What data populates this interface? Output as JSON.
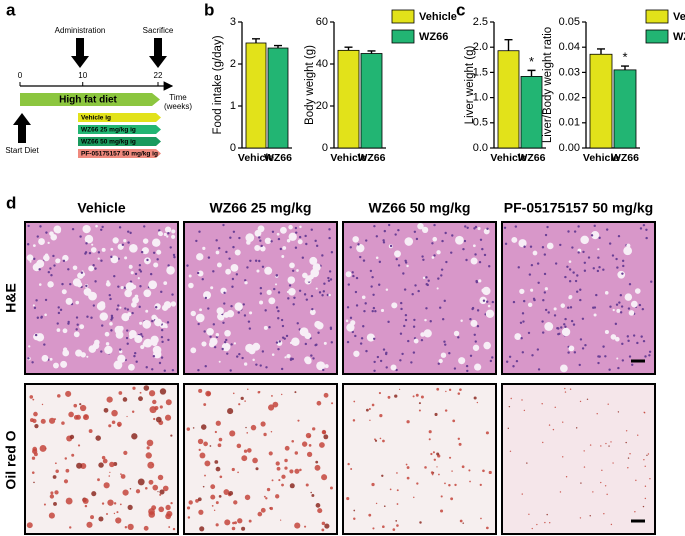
{
  "timeline": {
    "panel_label": "a",
    "events": [
      "Administration",
      "Sacrifice"
    ],
    "ticks": [
      0,
      10,
      22
    ],
    "time_label": [
      "Time",
      "(weeks)"
    ],
    "diet": "High fat diet",
    "start": "Start Diet",
    "groups": [
      {
        "name": "Vehicle ig",
        "color": "#e2e21a"
      },
      {
        "name": "WZ66 25 mg/kg ig",
        "color": "#22b573"
      },
      {
        "name": "WZ66 50 mg/kg ig",
        "color": "#1a9a5e"
      },
      {
        "name": "PF-05175157 50 mg/kg ig",
        "color": "#f08a7e"
      }
    ]
  },
  "chart_data": [
    {
      "type": "bar",
      "panel_label": "b",
      "y_label": "Food intake (g/day)",
      "categories": [
        "Vehicle",
        "WZ66"
      ],
      "values": [
        2.5,
        2.38
      ],
      "errors": [
        0.1,
        0.06
      ],
      "colors": [
        "#e2e21a",
        "#22b573"
      ],
      "ylim": [
        0,
        3
      ],
      "yticks": [
        0,
        1,
        2,
        3
      ]
    },
    {
      "type": "bar",
      "y_label": "Body weight (g)",
      "categories": [
        "Vehicle",
        "WZ66"
      ],
      "values": [
        46.5,
        45
      ],
      "errors": [
        1.5,
        1.2
      ],
      "colors": [
        "#e2e21a",
        "#22b573"
      ],
      "ylim": [
        0,
        60
      ],
      "yticks": [
        0,
        20,
        40,
        60
      ],
      "legend": true
    },
    {
      "type": "bar",
      "panel_label": "c",
      "y_label": "Liver weight (g)",
      "categories": [
        "Vehicle",
        "WZ66"
      ],
      "values": [
        1.93,
        1.42
      ],
      "errors": [
        0.22,
        0.12
      ],
      "colors": [
        "#e2e21a",
        "#22b573"
      ],
      "significance": [
        null,
        "*"
      ],
      "ylim": [
        0,
        2.5
      ],
      "yticks": [
        {
          "value": 0,
          "label": "0.0"
        },
        0.5,
        {
          "value": 1,
          "label": "1.0"
        },
        1.5,
        {
          "value": 2,
          "label": "2.0"
        },
        2.5
      ]
    },
    {
      "type": "bar",
      "y_label": "Liver/Body weight ratio",
      "categories": [
        "Vehicle",
        "WZ66"
      ],
      "values": [
        0.0372,
        0.031
      ],
      "errors": [
        0.0021,
        0.0015
      ],
      "colors": [
        "#e2e21a",
        "#22b573"
      ],
      "significance": [
        null,
        "*"
      ],
      "ylim": [
        0,
        0.05
      ],
      "yticks": [
        {
          "value": 0,
          "label": "0.00"
        },
        {
          "value": 0.01,
          "label": "0.01"
        },
        {
          "value": 0.02,
          "label": "0.02"
        },
        {
          "value": 0.03,
          "label": "0.03"
        },
        {
          "value": 0.04,
          "label": "0.04"
        },
        {
          "value": 0.05,
          "label": "0.05"
        }
      ],
      "legend": true
    }
  ],
  "histology": {
    "panel_label": "d",
    "columns": [
      "Vehicle",
      "WZ66 25 mg/kg",
      "WZ66 50 mg/kg",
      "PF-05175157 50 mg/kg"
    ],
    "rows": [
      "H&E",
      "Oil red O"
    ]
  }
}
